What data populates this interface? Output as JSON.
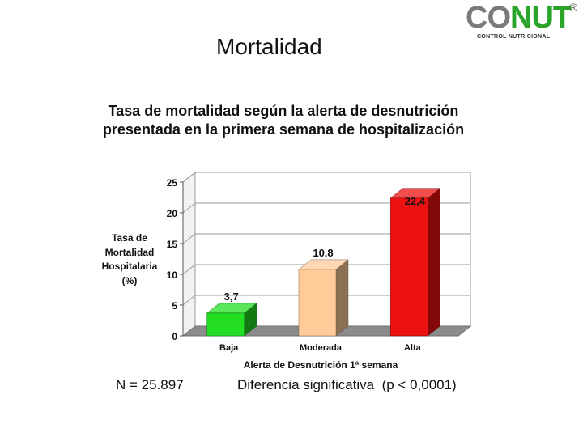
{
  "slide": {
    "title": "Mortalidad"
  },
  "logo": {
    "word_part1": "CO",
    "word_part2": "NUT",
    "registered": "®",
    "subtitle": "CONTROL NUTRICIONAL"
  },
  "chart_data": {
    "type": "bar",
    "title_line1": "Tasa de mortalidad según la alerta de desnutrición",
    "title_line2": "presentada en la primera semana de hospitalización",
    "ylabel_lines": [
      "Tasa de",
      "Mortalidad",
      "Hospitalaria",
      "(%)"
    ],
    "xlabel": "Alerta de Desnutrición 1ª semana",
    "categories": [
      "Baja",
      "Moderada",
      "Alta"
    ],
    "values": [
      3.7,
      10.8,
      22.4
    ],
    "value_labels": [
      "3,7",
      "10,8",
      "22,4"
    ],
    "colors": [
      "#22dd22",
      "#ffcc99",
      "#ee1111"
    ],
    "ylim": [
      0,
      25
    ],
    "yticks": [
      0,
      5,
      10,
      15,
      20,
      25
    ],
    "grid": true,
    "style": "3d"
  },
  "footer": {
    "n_label": "N = 25.897",
    "significance": "Diferencia significativa  (p < 0,0001)"
  }
}
